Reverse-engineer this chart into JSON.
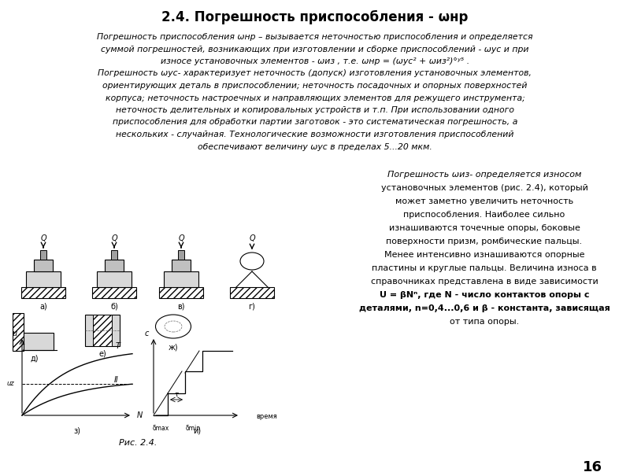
{
  "title": "2.4. Погрешность приспособления - ωнр",
  "page_number": "16",
  "fig_caption": "Рис. 2.4.",
  "background_color": "#ffffff",
  "text_color": "#000000",
  "main_text_block": "Погрешность приспособления ωнр – вызывается неточностью приспособления и определяется\nсуммой погрешностей, возникающих при изготовлении и сборке приспособлений - ωус и при\nизносе установочных элементов - ωиз , т.е. ωнр = (ωус² + ωиз²)°ʸ⁵ .\nПогрешность ωус- характеризует неточность (допуск) изготовления установочных элементов,\nориентирующих деталь в приспособлении; неточность посадочных и опорных поверхностей\nкорпуса; неточность настроечных и направляющих элементов для режущего инструмента;\nнеточность делительных и копировальных устройств и т.п. При использовании одного\nприспособления для обработки партии заготовок - это систематическая погрешность, а\nнескольких - случайная. Технологические возможности изготовления приспособлений\nобеспечивают величину ωус в пределах 5...20 мкм.",
  "right_text_block": "Погрешность ωиз- определяется износом\nустановочных элементов (рис. 2.4), который\nможет заметно увеличить неточность\nприспособления. Наиболее сильно\nизнашиваются точечные опоры, боковые\nповерхности призм, ромбические пальцы.\nМенее интенсивно изнашиваются опорные\nпластины и круглые пальцы. Величина износа в\nсправочниках представлена в виде зависимости\nU = βNⁿ, где N - число контактов опоры с\nдеталями, n=0,4...0,6 и β - константа, зависящая\nот типа опоры."
}
